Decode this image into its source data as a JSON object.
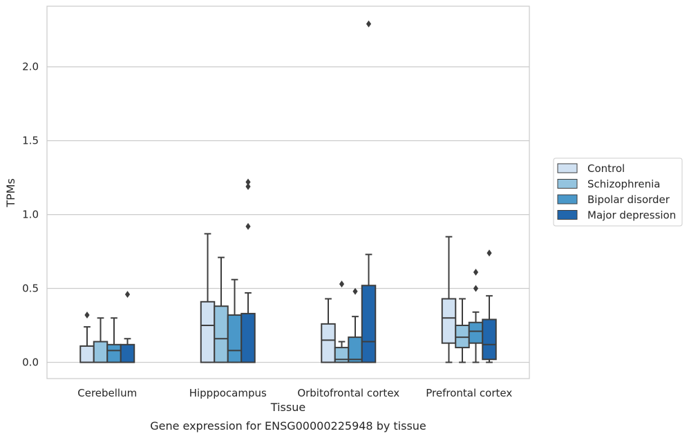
{
  "caption": "Gene expression for ENSG00000225948 by tissue",
  "chart_data": {
    "type": "boxplot",
    "xlabel": "Tissue",
    "ylabel": "TPMs",
    "ylim": [
      -0.11,
      2.41
    ],
    "yticks": [
      0.0,
      0.5,
      1.0,
      1.5,
      2.0
    ],
    "ytick_labels": [
      "0.0",
      "0.5",
      "1.0",
      "1.5",
      "2.0"
    ],
    "grid": "horizontal",
    "legend_position": "right",
    "categories": [
      "Cerebellum",
      "Hipppocampus",
      "Orbitofrontal cortex",
      "Prefrontal cortex"
    ],
    "series": [
      {
        "name": "Control",
        "color": "#d0e1f2",
        "boxes": [
          {
            "whislo": 0.0,
            "q1": 0.0,
            "med": 0.0,
            "q3": 0.11,
            "whishi": 0.24,
            "fliers": [
              0.32
            ]
          },
          {
            "whislo": 0.0,
            "q1": 0.0,
            "med": 0.25,
            "q3": 0.41,
            "whishi": 0.87,
            "fliers": []
          },
          {
            "whislo": 0.0,
            "q1": 0.0,
            "med": 0.15,
            "q3": 0.26,
            "whishi": 0.43,
            "fliers": []
          },
          {
            "whislo": 0.0,
            "q1": 0.13,
            "med": 0.3,
            "q3": 0.43,
            "whishi": 0.85,
            "fliers": []
          }
        ]
      },
      {
        "name": "Schizophrenia",
        "color": "#94c4df",
        "boxes": [
          {
            "whislo": 0.0,
            "q1": 0.0,
            "med": 0.0,
            "q3": 0.14,
            "whishi": 0.3,
            "fliers": []
          },
          {
            "whislo": 0.0,
            "q1": 0.0,
            "med": 0.16,
            "q3": 0.38,
            "whishi": 0.71,
            "fliers": []
          },
          {
            "whislo": 0.0,
            "q1": 0.0,
            "med": 0.02,
            "q3": 0.1,
            "whishi": 0.14,
            "fliers": [
              0.53
            ]
          },
          {
            "whislo": 0.0,
            "q1": 0.1,
            "med": 0.17,
            "q3": 0.25,
            "whishi": 0.43,
            "fliers": []
          }
        ]
      },
      {
        "name": "Bipolar disorder",
        "color": "#4a98c9",
        "boxes": [
          {
            "whislo": 0.0,
            "q1": 0.0,
            "med": 0.08,
            "q3": 0.12,
            "whishi": 0.3,
            "fliers": []
          },
          {
            "whislo": 0.0,
            "q1": 0.0,
            "med": 0.08,
            "q3": 0.32,
            "whishi": 0.56,
            "fliers": []
          },
          {
            "whislo": 0.0,
            "q1": 0.0,
            "med": 0.02,
            "q3": 0.17,
            "whishi": 0.31,
            "fliers": [
              0.48
            ]
          },
          {
            "whislo": 0.0,
            "q1": 0.13,
            "med": 0.21,
            "q3": 0.27,
            "whishi": 0.34,
            "fliers": [
              0.5,
              0.61
            ]
          }
        ]
      },
      {
        "name": "Major depression",
        "color": "#2166ac",
        "boxes": [
          {
            "whislo": 0.0,
            "q1": 0.0,
            "med": 0.0,
            "q3": 0.12,
            "whishi": 0.16,
            "fliers": [
              0.46
            ]
          },
          {
            "whislo": 0.0,
            "q1": 0.0,
            "med": 0.0,
            "q3": 0.33,
            "whishi": 0.47,
            "fliers": [
              0.92,
              1.19,
              1.22
            ]
          },
          {
            "whislo": 0.0,
            "q1": 0.0,
            "med": 0.14,
            "q3": 0.52,
            "whishi": 0.73,
            "fliers": [
              2.29
            ]
          },
          {
            "whislo": 0.0,
            "q1": 0.02,
            "med": 0.12,
            "q3": 0.29,
            "whishi": 0.45,
            "fliers": [
              0.74
            ]
          }
        ]
      }
    ]
  }
}
